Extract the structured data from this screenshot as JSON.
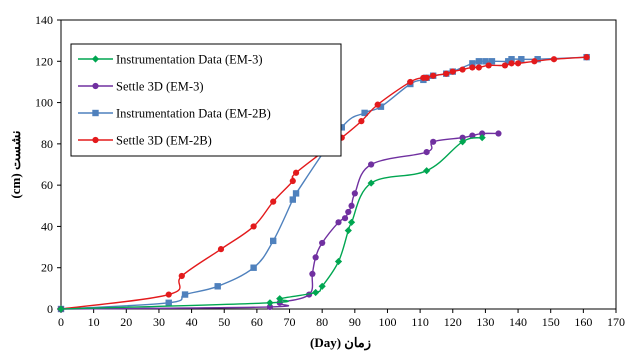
{
  "chart_data": {
    "type": "line",
    "xlabel": "زمان (Day)",
    "ylabel": "نشست (cm)",
    "xlim": [
      0,
      170
    ],
    "ylim": [
      0,
      140
    ],
    "xticks": [
      "0",
      "10",
      "20",
      "30",
      "40",
      "50",
      "60",
      "70",
      "80",
      "90",
      "100",
      "110",
      "120",
      "130",
      "140",
      "150",
      "160",
      "170"
    ],
    "yticks": [
      "0",
      "20",
      "40",
      "60",
      "80",
      "100",
      "120",
      "140"
    ],
    "grid": false,
    "legend_position": "top-left",
    "series": [
      {
        "name": "Instrumentation Data (EM-3)",
        "color": "#00a651",
        "marker": "diamond",
        "x": [
          0,
          64,
          67,
          78,
          80,
          85,
          88,
          89,
          95,
          112,
          123,
          129
        ],
        "y": [
          0,
          3,
          5,
          8,
          11,
          23,
          38,
          42,
          61,
          67,
          81,
          83
        ]
      },
      {
        "name": "Settle 3D (EM-3)",
        "color": "#7030a0",
        "marker": "circle",
        "x": [
          0,
          64,
          67,
          76,
          77,
          78,
          80,
          85,
          87,
          88,
          89,
          90,
          95,
          112,
          114,
          123,
          126,
          129,
          134
        ],
        "y": [
          0,
          1,
          3,
          7,
          17,
          25,
          32,
          42,
          44,
          47,
          50,
          56,
          70,
          76,
          81,
          83,
          84,
          85,
          85
        ]
      },
      {
        "name": "Instrumentation Data (EM-2B)",
        "color": "#4f81bd",
        "marker": "square",
        "x": [
          0,
          33,
          38,
          48,
          59,
          65,
          71,
          72,
          86,
          93,
          98,
          107,
          111,
          112,
          114,
          118,
          120,
          126,
          128,
          130,
          132,
          137,
          138,
          141,
          146,
          161
        ],
        "y": [
          0,
          3,
          7,
          11,
          20,
          33,
          53,
          56,
          88,
          95,
          98,
          109,
          111,
          112,
          113,
          114,
          115,
          119,
          120,
          120,
          120,
          120,
          121,
          121,
          121,
          122
        ]
      },
      {
        "name": "Settle 3D (EM-2B)",
        "color": "#e31a1c",
        "marker": "circle",
        "x": [
          0,
          33,
          37,
          49,
          59,
          65,
          71,
          72,
          86,
          92,
          97,
          107,
          111,
          112,
          114,
          118,
          120,
          123,
          126,
          128,
          131,
          136,
          138,
          140,
          145,
          151,
          161
        ],
        "y": [
          0,
          7,
          16,
          29,
          40,
          52,
          62,
          66,
          83,
          91,
          99,
          110,
          112,
          112,
          113,
          114,
          115,
          116,
          117,
          117,
          118,
          118,
          119,
          119,
          120,
          121,
          122
        ]
      }
    ]
  }
}
